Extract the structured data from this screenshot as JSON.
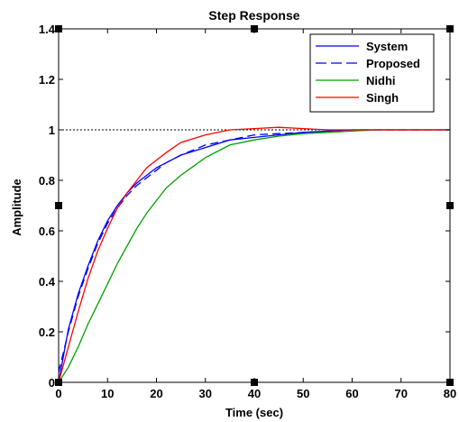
{
  "chart_data": {
    "type": "line",
    "title": "Step Response",
    "xlabel": "Time (sec)",
    "ylabel": "Amplitude",
    "xlim": [
      0,
      80
    ],
    "ylim": [
      0,
      1.4
    ],
    "xticks": [
      0,
      10,
      20,
      30,
      40,
      50,
      60,
      70,
      80
    ],
    "yticks": [
      0,
      0.2,
      0.4,
      0.6,
      0.8,
      1,
      1.2,
      1.4
    ],
    "xtick_labels": [
      "0",
      "10",
      "20",
      "30",
      "40",
      "50",
      "60",
      "70",
      "80"
    ],
    "ytick_labels": [
      "0",
      "0.2",
      "0.4",
      "0.6",
      "0.8",
      "1",
      "1.2",
      "1.4"
    ],
    "reference_line": {
      "y": 1,
      "style": "dotted",
      "color": "#000000"
    },
    "grid": false,
    "legend_position": "top-right",
    "series": [
      {
        "name": "System",
        "color": "#0000ff",
        "dash": "solid",
        "x": [
          0,
          2,
          4,
          6,
          8,
          10,
          12,
          14,
          16,
          18,
          20,
          22,
          25,
          30,
          35,
          40,
          45,
          50,
          55,
          60,
          65,
          70,
          75,
          80
        ],
        "y": [
          0,
          0.21,
          0.35,
          0.46,
          0.56,
          0.64,
          0.7,
          0.75,
          0.79,
          0.82,
          0.85,
          0.87,
          0.9,
          0.93,
          0.96,
          0.97,
          0.98,
          0.99,
          0.995,
          1.0,
          1.0,
          1.0,
          1.0,
          1.0
        ]
      },
      {
        "name": "Proposed",
        "color": "#0000ff",
        "dash": "dashed",
        "x": [
          0,
          2,
          4,
          6,
          8,
          10,
          12,
          14,
          16,
          18,
          20,
          22,
          25,
          30,
          35,
          40,
          45,
          50,
          55,
          60,
          65,
          70,
          75,
          80
        ],
        "y": [
          0.04,
          0.2,
          0.34,
          0.45,
          0.55,
          0.63,
          0.69,
          0.74,
          0.78,
          0.81,
          0.84,
          0.87,
          0.9,
          0.94,
          0.96,
          0.98,
          0.985,
          0.99,
          0.995,
          1.0,
          1.0,
          1.0,
          1.0,
          1.0
        ]
      },
      {
        "name": "Nidhi",
        "color": "#00a000",
        "dash": "solid",
        "x": [
          0,
          2,
          4,
          6,
          8,
          10,
          12,
          14,
          16,
          18,
          20,
          22,
          25,
          30,
          35,
          40,
          45,
          50,
          55,
          60,
          65,
          70,
          75,
          80
        ],
        "y": [
          0,
          0.06,
          0.14,
          0.23,
          0.31,
          0.39,
          0.47,
          0.54,
          0.61,
          0.67,
          0.72,
          0.77,
          0.82,
          0.89,
          0.94,
          0.96,
          0.975,
          0.985,
          0.99,
          0.995,
          1.0,
          1.0,
          1.0,
          1.0
        ]
      },
      {
        "name": "Singh",
        "color": "#ff0000",
        "dash": "solid",
        "x": [
          0,
          2,
          4,
          6,
          8,
          10,
          12,
          14,
          16,
          18,
          20,
          22,
          25,
          30,
          35,
          40,
          45,
          50,
          55,
          60,
          65,
          70,
          75,
          80
        ],
        "y": [
          0,
          0.14,
          0.28,
          0.41,
          0.52,
          0.61,
          0.69,
          0.75,
          0.8,
          0.85,
          0.88,
          0.91,
          0.95,
          0.98,
          1.0,
          1.005,
          1.01,
          1.005,
          1.0,
          1.0,
          1.0,
          1.0,
          1.0,
          1.0
        ]
      }
    ]
  }
}
